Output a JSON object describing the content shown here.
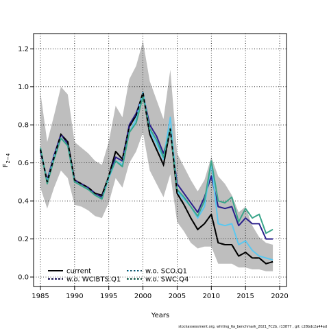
{
  "chart_data": {
    "type": "line",
    "xlabel": "Years",
    "ylabel_main": "F",
    "ylabel_sub": "2−4",
    "xlim": [
      1984,
      2021
    ],
    "ylim": [
      -0.05,
      1.28
    ],
    "xticks": [
      1985,
      1990,
      1995,
      2000,
      2005,
      2010,
      2015,
      2020
    ],
    "yticks": [
      0.0,
      0.2,
      0.4,
      0.6,
      0.8,
      1.0,
      1.2
    ],
    "grid": true,
    "legend_position": "bottom-left",
    "footnote": "stockassessment.org, whiting_6a_benchmark_2021_FC2b, r13877 , git: c28bdc2a44ad",
    "band": {
      "years": [
        1985,
        1986,
        1987,
        1988,
        1989,
        1990,
        1991,
        1992,
        1993,
        1994,
        1995,
        1996,
        1997,
        1998,
        1999,
        2000,
        2001,
        2002,
        2003,
        2004,
        2005,
        2006,
        2007,
        2008,
        2009,
        2010,
        2011,
        2012,
        2013,
        2014,
        2015,
        2016,
        2017,
        2018,
        2019
      ],
      "upper": [
        0.97,
        0.71,
        0.85,
        1.0,
        0.96,
        0.71,
        0.68,
        0.65,
        0.61,
        0.59,
        0.71,
        0.9,
        0.84,
        1.04,
        1.11,
        1.24,
        1.03,
        0.93,
        0.83,
        1.09,
        0.65,
        0.58,
        0.51,
        0.45,
        0.51,
        0.63,
        0.53,
        0.49,
        0.43,
        0.34,
        0.37,
        0.27,
        0.21,
        0.18,
        0.17
      ],
      "lower": [
        0.47,
        0.36,
        0.47,
        0.56,
        0.52,
        0.38,
        0.37,
        0.35,
        0.32,
        0.31,
        0.39,
        0.52,
        0.47,
        0.6,
        0.66,
        0.76,
        0.56,
        0.49,
        0.42,
        0.54,
        0.29,
        0.24,
        0.18,
        0.15,
        0.16,
        0.16,
        0.07,
        0.07,
        0.07,
        0.05,
        0.05,
        0.04,
        0.04,
        0.03,
        0.03
      ]
    },
    "series": [
      {
        "name": "current",
        "color": "#000000",
        "dash": "",
        "width": 2,
        "x": [
          1985,
          1986,
          1987,
          1988,
          1989,
          1990,
          1991,
          1992,
          1993,
          1994,
          1995,
          1996,
          1997,
          1998,
          1999,
          2000,
          2001,
          2002,
          2003,
          2004,
          2005,
          2006,
          2007,
          2008,
          2009,
          2010,
          2011,
          2012,
          2013,
          2014,
          2015,
          2016,
          2017,
          2018,
          2019
        ],
        "y": [
          0.67,
          0.5,
          0.63,
          0.75,
          0.71,
          0.51,
          0.49,
          0.47,
          0.44,
          0.43,
          0.53,
          0.66,
          0.62,
          0.79,
          0.85,
          0.97,
          0.75,
          0.67,
          0.59,
          0.78,
          0.44,
          0.38,
          0.31,
          0.25,
          0.28,
          0.33,
          0.18,
          0.17,
          0.17,
          0.11,
          0.13,
          0.1,
          0.1,
          0.07,
          0.08
        ]
      },
      {
        "name": "w.o. WCIBTS.Q1",
        "color": "#2a1f8a",
        "dash": "",
        "width": 2,
        "x": [
          1985,
          1986,
          1987,
          1988,
          1989,
          1990,
          1991,
          1992,
          1993,
          1994,
          1995,
          1996,
          1997,
          1998,
          1999,
          2000,
          2001,
          2002,
          2003,
          2004,
          2005,
          2006,
          2007,
          2008,
          2009,
          2010,
          2011,
          2012,
          2013,
          2014,
          2015,
          2016,
          2017,
          2018,
          2019
        ],
        "y": [
          0.66,
          0.51,
          0.64,
          0.75,
          0.7,
          0.51,
          0.49,
          0.47,
          0.44,
          0.42,
          0.53,
          0.63,
          0.61,
          0.8,
          0.86,
          0.96,
          0.8,
          0.74,
          0.65,
          0.77,
          0.49,
          0.44,
          0.39,
          0.34,
          0.42,
          0.53,
          0.37,
          0.36,
          0.37,
          0.27,
          0.31,
          0.28,
          0.28,
          0.2,
          0.2
        ]
      },
      {
        "name": "w.o. SCO.Q1",
        "color": "#5ac8f0",
        "dash": "",
        "width": 2,
        "x": [
          1985,
          1986,
          1987,
          1988,
          1989,
          1990,
          1991,
          1992,
          1993,
          1994,
          1995,
          1996,
          1997,
          1998,
          1999,
          2000,
          2001,
          2002,
          2003,
          2004,
          2005,
          2006,
          2007,
          2008,
          2009,
          2010,
          2011,
          2012,
          2013,
          2014,
          2015,
          2016,
          2017,
          2018,
          2019
        ],
        "y": [
          0.68,
          0.5,
          0.63,
          0.73,
          0.69,
          0.5,
          0.48,
          0.46,
          0.43,
          0.41,
          0.52,
          0.61,
          0.59,
          0.76,
          0.83,
          0.97,
          0.77,
          0.7,
          0.62,
          0.84,
          0.45,
          0.41,
          0.37,
          0.31,
          0.37,
          0.6,
          0.28,
          0.27,
          0.28,
          0.17,
          0.19,
          0.14,
          0.11,
          0.1,
          0.09
        ]
      },
      {
        "name": "w.o. SWC.Q4",
        "color": "#3aa58a",
        "dash": "",
        "width": 2,
        "x": [
          1985,
          1986,
          1987,
          1988,
          1989,
          1990,
          1991,
          1992,
          1993,
          1994,
          1995,
          1996,
          1997,
          1998,
          1999,
          2000,
          2001,
          2002,
          2003,
          2004,
          2005,
          2006,
          2007,
          2008,
          2009,
          2010,
          2011,
          2012,
          2013,
          2014,
          2015,
          2016,
          2017,
          2018,
          2019
        ],
        "y": [
          0.68,
          0.49,
          0.62,
          0.73,
          0.69,
          0.5,
          0.48,
          0.46,
          0.43,
          0.41,
          0.53,
          0.61,
          0.58,
          0.76,
          0.81,
          0.95,
          0.78,
          0.72,
          0.63,
          0.78,
          0.46,
          0.42,
          0.37,
          0.32,
          0.4,
          0.61,
          0.4,
          0.39,
          0.42,
          0.29,
          0.36,
          0.31,
          0.33,
          0.23,
          0.25
        ]
      }
    ],
    "overlay_dashed": {
      "color": "#000000",
      "x": [
        1985,
        1986,
        1987,
        1988,
        1989,
        1990,
        1991,
        1992,
        1993,
        1994,
        1995,
        1996,
        1997,
        1998,
        1999,
        2000,
        2001,
        2002,
        2003,
        2004,
        2005,
        2006,
        2007,
        2008,
        2009,
        2010,
        2011,
        2012,
        2013,
        2014,
        2015,
        2016,
        2017,
        2018,
        2019
      ],
      "y": [
        0.67,
        0.5,
        0.63,
        0.75,
        0.71,
        0.51,
        0.49,
        0.47,
        0.44,
        0.43,
        0.53,
        0.66,
        0.62,
        0.79,
        0.85,
        0.97,
        0.75,
        0.67,
        0.59,
        0.78,
        0.44,
        0.38,
        0.31,
        0.25,
        0.28,
        0.33,
        0.18,
        0.17,
        0.17,
        0.11,
        0.13,
        0.1,
        0.1,
        0.07,
        0.08
      ]
    },
    "legend": [
      {
        "label": "current",
        "color": "#000000",
        "style": "solid"
      },
      {
        "label": "w.o. WCIBTS.Q1",
        "color": "#2a1f8a",
        "style": "dashed"
      },
      {
        "label": "w.o. SCO.Q1",
        "color": "#5ac8f0",
        "style": "dashed"
      },
      {
        "label": "w.o. SWC.Q4",
        "color": "#3aa58a",
        "style": "dashed"
      }
    ],
    "band_color": "#bebebe"
  }
}
